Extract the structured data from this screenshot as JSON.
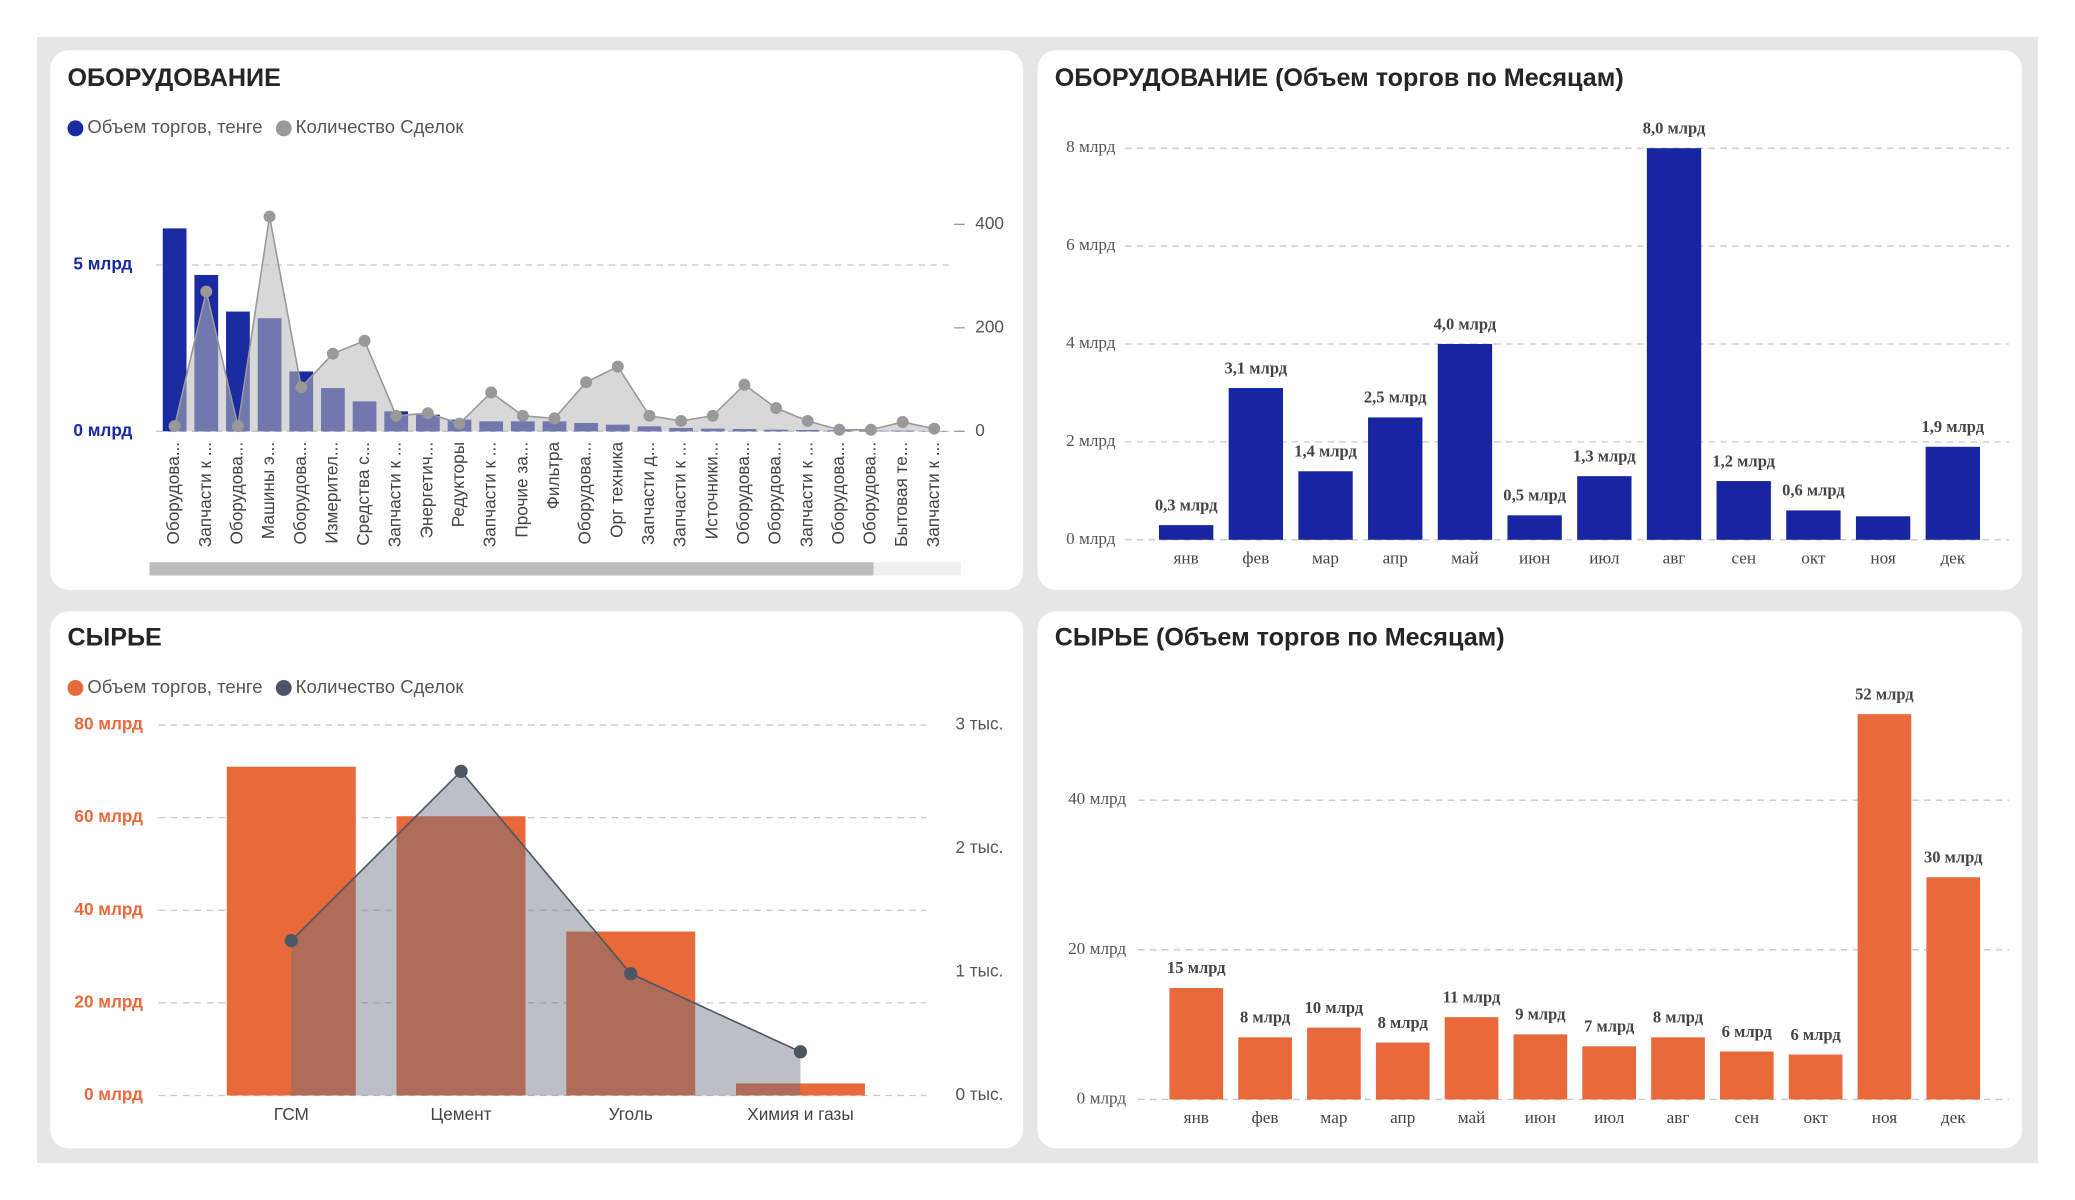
{
  "chart_data": [
    {
      "type": "bar-line",
      "title": "ОБОРУДОВАНИЕ",
      "categories": [
        "Оборудова...",
        "Запчасти к ...",
        "Оборудова...",
        "Машины э...",
        "Оборудова...",
        "Измерител...",
        "Средства с...",
        "Запчасти к ...",
        "Энергетич...",
        "Редукторы",
        "Запчасти к ...",
        "Прочие за...",
        "Фильтра",
        "Оборудова...",
        "Орг техника",
        "Запчасти д...",
        "Запчасти к ...",
        "Источники...",
        "Оборудова...",
        "Оборудова...",
        "Запчасти к ...",
        "Оборудова...",
        "Оборудова...",
        "Бытовая те...",
        "Запчасти к ..."
      ],
      "series": [
        {
          "name": "Объем торгов, тенге",
          "color": "#1a2aa0",
          "type": "bar",
          "values": [
            6100000000,
            4700000000,
            3600000000,
            3400000000,
            1800000000,
            1300000000,
            900000000,
            600000000,
            500000000,
            350000000,
            300000000,
            300000000,
            300000000,
            250000000,
            200000000,
            150000000,
            100000000,
            80000000,
            70000000,
            50000000,
            40000000,
            30000000,
            20000000,
            20000000,
            10000000
          ]
        },
        {
          "name": "Количество Сделок",
          "color": "#999999",
          "type": "area",
          "axis": "y2",
          "values": [
            10,
            270,
            10,
            415,
            85,
            150,
            175,
            30,
            35,
            15,
            75,
            30,
            25,
            95,
            125,
            30,
            20,
            30,
            90,
            45,
            20,
            3,
            3,
            18,
            5
          ]
        }
      ],
      "ylim": [
        0,
        7000000000
      ],
      "yticks": [
        {
          "value": 0,
          "label": "0 млрд"
        },
        {
          "value": 5000000000,
          "label": "5 млрд"
        }
      ],
      "y2lim": [
        0,
        450
      ],
      "y2ticks": [
        0,
        200,
        400
      ],
      "grid": true
    },
    {
      "type": "bar",
      "title": "ОБОРУДОВАНИЕ (Объем торгов по Месяцам)",
      "categories": [
        "янв",
        "фев",
        "мар",
        "апр",
        "май",
        "июн",
        "июл",
        "авг",
        "сен",
        "окт",
        "ноя",
        "дек"
      ],
      "values": [
        300000000,
        3100000000,
        1400000000,
        2500000000,
        4000000000,
        500000000,
        1300000000,
        8000000000,
        1200000000,
        600000000,
        480000000,
        1900000000
      ],
      "value_labels": [
        "0,3 млрд",
        "3,1 млрд",
        "1,4 млрд",
        "2,5 млрд",
        "4,0 млрд",
        "0,5 млрд",
        "1,3 млрд",
        "8,0 млрд",
        "1,2 млрд",
        "0,6 млрд",
        null,
        "1,9 млрд"
      ],
      "color": "#1726a0",
      "ylim": [
        0,
        8500000000
      ],
      "yticks": [
        {
          "value": 0,
          "label": "0 млрд"
        },
        {
          "value": 2000000000,
          "label": "2 млрд"
        },
        {
          "value": 4000000000,
          "label": "4 млрд"
        },
        {
          "value": 6000000000,
          "label": "6 млрд"
        },
        {
          "value": 8000000000,
          "label": "8 млрд"
        }
      ],
      "grid": true
    },
    {
      "type": "bar-line",
      "title": "СЫРЬЕ",
      "categories": [
        "ГСМ",
        "Цемент",
        "Уголь",
        "Химия и газы"
      ],
      "series": [
        {
          "name": "Объем торгов, тенге",
          "color": "#e8693a",
          "type": "bar",
          "values": [
            71000000000,
            60300000000,
            35400000000,
            2600000000
          ]
        },
        {
          "name": "Количество Сделок",
          "color": "#4b5563",
          "type": "area",
          "axis": "y2",
          "values": [
            1254,
            2625,
            986,
            354
          ]
        }
      ],
      "ylim": [
        0,
        80000000000
      ],
      "yticks": [
        {
          "value": 0,
          "label": "0 млрд"
        },
        {
          "value": 20000000000,
          "label": "20 млрд"
        },
        {
          "value": 40000000000,
          "label": "40 млрд"
        },
        {
          "value": 60000000000,
          "label": "60 млрд"
        },
        {
          "value": 80000000000,
          "label": "80 млрд"
        }
      ],
      "y2lim": [
        0,
        3000
      ],
      "y2ticks": [
        {
          "value": 0,
          "label": "0 тыс."
        },
        {
          "value": 1000,
          "label": "1 тыс."
        },
        {
          "value": 2000,
          "label": "2 тыс."
        },
        {
          "value": 3000,
          "label": "3 тыс."
        }
      ],
      "grid": true
    },
    {
      "type": "bar",
      "title": "СЫРЬЕ (Объем торгов по Месяцам)",
      "categories": [
        "янв",
        "фев",
        "мар",
        "апр",
        "май",
        "июн",
        "июл",
        "авг",
        "сен",
        "окт",
        "ноя",
        "дек"
      ],
      "values": [
        14900000000,
        8300000000,
        9600000000,
        7600000000,
        11000000000,
        8700000000,
        7100000000,
        8300000000,
        6400000000,
        6000000000,
        51500000000,
        29700000000
      ],
      "value_labels": [
        "15 млрд",
        "8 млрд",
        "10 млрд",
        "8 млрд",
        "11 млрд",
        "9 млрд",
        "7 млрд",
        "8 млрд",
        "6 млрд",
        "6 млрд",
        "52 млрд",
        "30 млрд"
      ],
      "color": "#e8693a",
      "ylim": [
        0,
        55000000000
      ],
      "yticks": [
        {
          "value": 0,
          "label": "0 млрд"
        },
        {
          "value": 20000000000,
          "label": "20 млрд"
        },
        {
          "value": 40000000000,
          "label": "40 млрд"
        }
      ],
      "grid": true
    }
  ]
}
